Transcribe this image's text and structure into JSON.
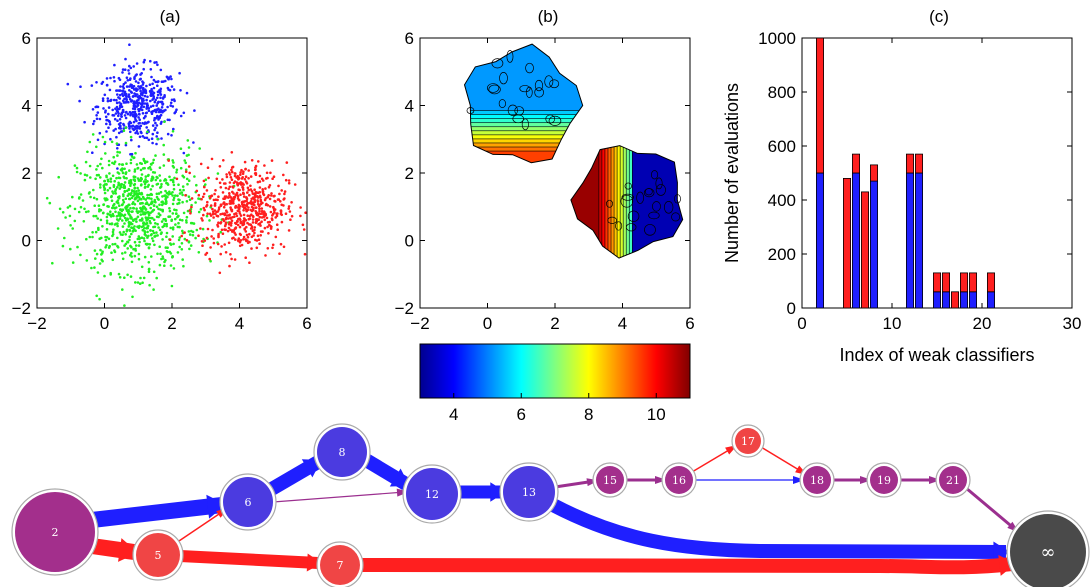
{
  "colors": {
    "blue": "#1f1fff",
    "red": "#ff1f1f",
    "green": "#22ee22",
    "purple": "#9b2f8f",
    "node_blue": "#4b3be0",
    "node_red": "#f04545",
    "node_purple": "#a32f8c",
    "node_gray": "#4a4a4a"
  },
  "panels": {
    "a": {
      "title": "(a)"
    },
    "b": {
      "title": "(b)"
    },
    "c": {
      "title": "(c)"
    }
  },
  "chart_data": [
    {
      "type": "scatter",
      "title": "(a)",
      "xlim": [
        -2,
        6
      ],
      "ylim": [
        -2,
        6
      ],
      "xticks": [
        -2,
        0,
        2,
        4,
        6
      ],
      "yticks": [
        -2,
        0,
        2,
        4,
        6
      ],
      "series": [
        {
          "color": "blue",
          "center": [
            1.0,
            4.0
          ],
          "spread": [
            0.6,
            0.55
          ],
          "count": 500
        },
        {
          "color": "green",
          "center": [
            1.0,
            0.9
          ],
          "spread": [
            0.9,
            0.9
          ],
          "count": 900
        },
        {
          "color": "red",
          "center": [
            4.1,
            1.0
          ],
          "spread": [
            0.65,
            0.65
          ],
          "count": 600
        }
      ]
    },
    {
      "type": "heatmap",
      "title": "(b)",
      "xlim": [
        -2,
        6
      ],
      "ylim": [
        -2,
        6
      ],
      "xticks": [
        -2,
        0,
        2,
        4,
        6
      ],
      "yticks": [
        -2,
        0,
        2,
        4,
        6
      ],
      "colorbar": {
        "range": [
          3,
          11
        ],
        "ticks": [
          4,
          6,
          8,
          10
        ],
        "colormap": "jet"
      },
      "regions": [
        {
          "name": "upper-cluster",
          "center": [
            1.0,
            4.0
          ],
          "value_top": 5.2,
          "value_bottom": 9.5
        },
        {
          "name": "lower-right-cluster",
          "center": [
            4.2,
            1.2
          ],
          "value_left": 9.0,
          "value_right": 3.4
        }
      ]
    },
    {
      "type": "bar",
      "title": "(c)",
      "xlabel": "Index of weak classifiers",
      "ylabel": "Number of evaluations",
      "xlim": [
        0,
        30
      ],
      "ylim": [
        0,
        1000
      ],
      "xticks": [
        0,
        10,
        20,
        30
      ],
      "yticks": [
        0,
        200,
        400,
        600,
        800,
        1000
      ],
      "bar_width": 0.8,
      "series_colors": [
        "blue",
        "red"
      ],
      "bars": [
        {
          "x": 2,
          "blue": 500,
          "red": 500
        },
        {
          "x": 5,
          "blue": 0,
          "red": 480
        },
        {
          "x": 6,
          "blue": 500,
          "red": 70
        },
        {
          "x": 7,
          "blue": 0,
          "red": 430
        },
        {
          "x": 8,
          "blue": 470,
          "red": 60
        },
        {
          "x": 12,
          "blue": 500,
          "red": 70
        },
        {
          "x": 13,
          "blue": 500,
          "red": 70
        },
        {
          "x": 15,
          "blue": 60,
          "red": 70
        },
        {
          "x": 16,
          "blue": 60,
          "red": 70
        },
        {
          "x": 17,
          "blue": 0,
          "red": 60
        },
        {
          "x": 18,
          "blue": 60,
          "red": 70
        },
        {
          "x": 19,
          "blue": 60,
          "red": 70
        },
        {
          "x": 21,
          "blue": 60,
          "red": 70
        }
      ]
    }
  ],
  "graph": {
    "nodes": [
      {
        "id": "2",
        "label": "2",
        "color": "node_purple"
      },
      {
        "id": "5",
        "label": "5",
        "color": "node_red"
      },
      {
        "id": "6",
        "label": "6",
        "color": "node_blue"
      },
      {
        "id": "7",
        "label": "7",
        "color": "node_red"
      },
      {
        "id": "8",
        "label": "8",
        "color": "node_blue"
      },
      {
        "id": "12",
        "label": "12",
        "color": "node_blue"
      },
      {
        "id": "13",
        "label": "13",
        "color": "node_blue"
      },
      {
        "id": "15",
        "label": "15",
        "color": "node_purple"
      },
      {
        "id": "16",
        "label": "16",
        "color": "node_purple"
      },
      {
        "id": "17",
        "label": "17",
        "color": "node_red"
      },
      {
        "id": "18",
        "label": "18",
        "color": "node_purple"
      },
      {
        "id": "19",
        "label": "19",
        "color": "node_purple"
      },
      {
        "id": "21",
        "label": "21",
        "color": "node_purple"
      },
      {
        "id": "inf",
        "label": "∞",
        "color": "node_gray"
      }
    ],
    "edges": [
      {
        "from": "2",
        "to": "6",
        "color": "blue",
        "weight": 16
      },
      {
        "from": "2",
        "to": "5",
        "color": "red",
        "weight": 16
      },
      {
        "from": "5",
        "to": "6",
        "color": "red",
        "weight": 1.5
      },
      {
        "from": "5",
        "to": "7",
        "color": "red",
        "weight": 12
      },
      {
        "from": "6",
        "to": "8",
        "color": "blue",
        "weight": 14
      },
      {
        "from": "6",
        "to": "12",
        "color": "purple",
        "weight": 1.2
      },
      {
        "from": "8",
        "to": "12",
        "color": "blue",
        "weight": 14
      },
      {
        "from": "12",
        "to": "13",
        "color": "blue",
        "weight": 13
      },
      {
        "from": "13",
        "to": "15",
        "color": "purple",
        "weight": 3
      },
      {
        "from": "13",
        "to": "inf",
        "color": "blue",
        "weight": 14
      },
      {
        "from": "7",
        "to": "inf",
        "color": "red",
        "weight": 14
      },
      {
        "from": "15",
        "to": "16",
        "color": "purple",
        "weight": 3
      },
      {
        "from": "16",
        "to": "17",
        "color": "red",
        "weight": 1.5
      },
      {
        "from": "16",
        "to": "18",
        "color": "blue",
        "weight": 1.2
      },
      {
        "from": "17",
        "to": "18",
        "color": "red",
        "weight": 1.5
      },
      {
        "from": "18",
        "to": "19",
        "color": "purple",
        "weight": 3
      },
      {
        "from": "19",
        "to": "21",
        "color": "purple",
        "weight": 3
      },
      {
        "from": "21",
        "to": "inf",
        "color": "purple",
        "weight": 3
      }
    ]
  }
}
